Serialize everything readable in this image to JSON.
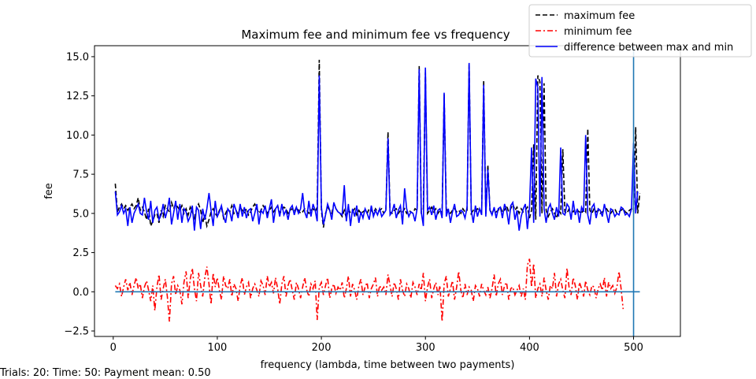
{
  "footer_text": "Trials: 20: Time: 50: Payment mean: 0.50",
  "chart_data": {
    "type": "line",
    "title": "Maximum fee and minimum fee vs frequency",
    "xlabel": "frequency (lambda, time between two payments)",
    "ylabel": "fee",
    "xlim": [
      -18,
      545
    ],
    "ylim": [
      -2.85,
      15.7
    ],
    "xticks": [
      0,
      100,
      200,
      300,
      400,
      500
    ],
    "yticks": [
      -2.5,
      0.0,
      2.5,
      5.0,
      7.5,
      10.0,
      12.5,
      15.0
    ],
    "xtick_labels": [
      "0",
      "100",
      "200",
      "300",
      "400",
      "500"
    ],
    "ytick_labels": [
      "−2.5",
      "0.0",
      "2.5",
      "5.0",
      "7.5",
      "10.0",
      "12.5",
      "15.0"
    ],
    "grid": false,
    "legend_position": "top-right",
    "x_start": 2,
    "x_step": 2,
    "series": [
      {
        "name": "maximum fee",
        "color": "#000000",
        "style": "dashed",
        "values": [
          6.9,
          5.1,
          5.4,
          5.6,
          5.3,
          5.5,
          5.2,
          5.4,
          5.6,
          5.3,
          5.5,
          6.0,
          5.2,
          5.4,
          5.1,
          4.6,
          5.3,
          4.2,
          4.5,
          4.9,
          5.0,
          4.4,
          5.2,
          4.8,
          5.5,
          5.3,
          5.1,
          5.7,
          5.3,
          5.6,
          5.4,
          5.2,
          5.5,
          5.0,
          5.3,
          4.9,
          5.4,
          5.1,
          4.7,
          5.3,
          5.6,
          5.2,
          4.4,
          4.9,
          4.2,
          4.6,
          5.1,
          5.3,
          5.0,
          4.8,
          5.2,
          5.4,
          4.7,
          5.0,
          5.3,
          5.1,
          5.5,
          5.0,
          5.2,
          4.9,
          5.4,
          5.2,
          5.0,
          5.3,
          4.9,
          5.1,
          5.4,
          5.6,
          5.3,
          5.0,
          5.2,
          5.5,
          5.3,
          5.0,
          5.2,
          5.4,
          5.1,
          5.3,
          5.5,
          5.0,
          5.2,
          5.4,
          5.3,
          5.0,
          5.2,
          5.3,
          5.1,
          5.4,
          5.2,
          5.0,
          5.1,
          5.3,
          5.2,
          5.0,
          5.2,
          5.3,
          5.1,
          5.4,
          14.8,
          5.2,
          4.1,
          5.0,
          5.4,
          5.2,
          5.0,
          5.6,
          5.3,
          5.1,
          5.0,
          4.8,
          5.2,
          4.7,
          5.3,
          5.0,
          5.1,
          5.3,
          4.9,
          5.2,
          5.0,
          5.1,
          5.2,
          5.0,
          5.3,
          5.2,
          5.0,
          5.3,
          5.1,
          5.2,
          5.3,
          5.0,
          5.2,
          10.2,
          5.1,
          5.0,
          5.2,
          5.3,
          5.0,
          5.2,
          5.1,
          5.3,
          5.0,
          5.2,
          5.1,
          5.0,
          5.3,
          5.2,
          14.4,
          5.1,
          5.3,
          14.0,
          5.0,
          5.2,
          5.4,
          5.1,
          5.3,
          5.0,
          5.2,
          5.0,
          12.6,
          5.3,
          5.1,
          5.0,
          5.2,
          5.3,
          5.1,
          5.2,
          5.0,
          5.3,
          5.1,
          5.2,
          14.6,
          5.0,
          5.2,
          5.1,
          5.3,
          5.2,
          5.1,
          13.5,
          4.9,
          8.1,
          5.2,
          5.0,
          5.3,
          5.1,
          5.2,
          5.4,
          5.1,
          5.2,
          5.5,
          5.1,
          5.3,
          5.6,
          5.2,
          5.4,
          5.0,
          5.3,
          5.1,
          5.2,
          5.4,
          4.7,
          5.2,
          9.4,
          4.6,
          13.8,
          13.4,
          5.0,
          13.3,
          5.2,
          4.8,
          5.1,
          5.3,
          5.0,
          4.7,
          5.2,
          5.0,
          9.1,
          5.1,
          5.0,
          5.3,
          5.2,
          5.1,
          5.3,
          5.2,
          5.1,
          5.0,
          5.3,
          5.1,
          10.4,
          5.2,
          5.0,
          5.3,
          5.1,
          5.2,
          5.0,
          5.1,
          5.2,
          5.3,
          5.1,
          5.0,
          5.2,
          5.3,
          5.0,
          5.1,
          5.2,
          5.3,
          5.1,
          5.0,
          5.2,
          5.3,
          5.1,
          10.5,
          5.0,
          6.3
        ]
      },
      {
        "name": "minimum fee",
        "color": "#ff0000",
        "style": "dashdot",
        "values": [
          0.4,
          0.2,
          0.5,
          -0.3,
          0.3,
          0.8,
          0.1,
          0.6,
          -0.2,
          0.4,
          0.9,
          0.2,
          0.5,
          -0.4,
          0.3,
          0.7,
          0.1,
          -0.6,
          0.4,
          -1.2,
          0.3,
          1.1,
          -0.5,
          0.2,
          0.8,
          -0.3,
          -1.9,
          0.5,
          1.0,
          -0.2,
          0.4,
          0.1,
          -0.8,
          0.6,
          1.3,
          -0.4,
          0.8,
          1.5,
          0.2,
          -0.6,
          1.2,
          0.4,
          -0.3,
          0.9,
          1.6,
          0.5,
          -0.8,
          1.2,
          0.3,
          0.9,
          0.1,
          -0.5,
          1.0,
          0.4,
          0.2,
          0.8,
          -0.3,
          0.5,
          0.2,
          -0.6,
          0.4,
          0.9,
          -0.2,
          0.3,
          0.6,
          -0.4,
          0.2,
          0.5,
          0.1,
          -0.3,
          0.7,
          0.4,
          -0.2,
          1.0,
          0.3,
          0.6,
          -0.1,
          0.9,
          0.2,
          -0.8,
          0.5,
          1.0,
          -0.3,
          0.4,
          0.8,
          0.1,
          -0.5,
          0.6,
          0.2,
          -0.4,
          0.3,
          0.9,
          0.1,
          -0.3,
          0.5,
          0.2,
          0.7,
          -1.8,
          0.3,
          0.6,
          -0.2,
          0.4,
          0.9,
          -0.4,
          0.2,
          0.5,
          -0.1,
          0.3,
          0.1,
          0.6,
          -0.4,
          0.2,
          1.0,
          -0.3,
          0.5,
          0.1,
          -0.5,
          0.4,
          0.8,
          -0.2,
          0.3,
          0.6,
          -0.4,
          0.2,
          0.5,
          0.9,
          -0.3,
          0.4,
          0.1,
          0.3,
          -0.2,
          1.1,
          0.4,
          -0.3,
          0.6,
          0.2,
          -0.5,
          0.8,
          0.1,
          -0.3,
          0.5,
          0.2,
          -0.4,
          0.6,
          0.3,
          -0.2,
          0.5,
          0.1,
          1.2,
          -0.6,
          0.3,
          0.8,
          -0.4,
          0.2,
          0.6,
          -0.2,
          0.4,
          -1.9,
          0.5,
          1.0,
          -0.3,
          0.2,
          0.7,
          -0.5,
          0.3,
          1.3,
          0.1,
          -0.4,
          0.5,
          -0.2,
          0.3,
          0.1,
          -0.6,
          0.4,
          0.2,
          -0.3,
          0.5,
          0.1,
          -0.2,
          0.3,
          -0.4,
          0.2,
          1.1,
          -0.3,
          0.5,
          0.8,
          -0.2,
          0.4,
          0.6,
          -0.5,
          0.2,
          0.3,
          -0.2,
          0.1,
          0.4,
          -0.3,
          0.2,
          -0.5,
          1.7,
          2.1,
          0.3,
          1.8,
          -0.4,
          0.2,
          0.5,
          -0.3,
          0.9,
          0.1,
          -0.5,
          0.4,
          0.2,
          1.2,
          -0.3,
          0.5,
          0.8,
          0.1,
          -0.4,
          1.5,
          0.3,
          -0.2,
          0.9,
          0.4,
          -0.5,
          0.6,
          0.2,
          -0.3,
          0.7,
          0.1,
          -0.2,
          0.4,
          0.3,
          -0.4,
          0.2,
          0.5,
          0.1,
          0.9,
          -0.3,
          0.6,
          0.2,
          0.4,
          -0.1,
          0.3,
          1.3,
          0.2,
          -1.1
        ]
      },
      {
        "name": "difference between max and min",
        "color": "#0000ff",
        "style": "solid",
        "values": [
          6.4,
          4.9,
          5.1,
          5.5,
          5.0,
          5.3,
          4.2,
          5.4,
          4.4,
          5.0,
          5.3,
          5.6,
          5.0,
          4.9,
          6.0,
          5.1,
          4.6,
          5.8,
          4.4,
          5.2,
          5.4,
          4.6,
          4.9,
          5.6,
          4.7,
          5.2,
          6.0,
          4.3,
          5.0,
          5.8,
          4.6,
          5.6,
          4.4,
          5.3,
          5.1,
          4.5,
          4.8,
          5.5,
          3.9,
          5.4,
          5.2,
          4.0,
          5.3,
          4.6,
          5.3,
          6.3,
          5.2,
          4.2,
          5.8,
          4.8,
          5.1,
          5.5,
          4.8,
          4.4,
          5.3,
          5.1,
          4.5,
          5.6,
          5.2,
          4.7,
          5.6,
          4.8,
          5.4,
          4.7,
          5.2,
          5.3,
          4.5,
          5.0,
          5.6,
          4.3,
          5.2,
          5.0,
          5.5,
          4.7,
          5.3,
          5.9,
          4.4,
          5.3,
          5.5,
          4.8,
          5.6,
          4.9,
          5.2,
          4.6,
          5.3,
          5.5,
          4.9,
          5.4,
          5.0,
          5.3,
          6.3,
          5.1,
          4.7,
          5.8,
          4.8,
          5.6,
          5.2,
          4.5,
          13.8,
          5.4,
          4.3,
          4.9,
          5.6,
          5.2,
          4.6,
          5.7,
          5.3,
          5.1,
          5.0,
          4.9,
          6.8,
          4.5,
          5.6,
          4.2,
          5.3,
          4.8,
          5.5,
          4.4,
          5.1,
          4.7,
          5.3,
          5.0,
          4.6,
          5.5,
          4.8,
          5.2,
          4.9,
          5.3,
          4.8,
          5.0,
          5.2,
          9.8,
          4.9,
          5.1,
          5.6,
          4.7,
          5.2,
          5.5,
          4.3,
          6.6,
          5.3,
          4.8,
          5.1,
          5.0,
          4.5,
          5.3,
          14.2,
          5.1,
          4.2,
          14.3,
          5.2,
          5.4,
          4.9,
          5.5,
          4.6,
          5.2,
          5.3,
          4.7,
          12.7,
          4.8,
          5.3,
          4.4,
          5.1,
          5.6,
          4.8,
          4.9,
          5.2,
          5.1,
          4.7,
          5.4,
          14.6,
          5.2,
          4.4,
          5.5,
          4.8,
          5.3,
          4.9,
          13.2,
          4.8,
          7.8,
          5.2,
          4.9,
          5.4,
          4.7,
          5.3,
          5.4,
          4.7,
          5.6,
          5.2,
          4.3,
          5.5,
          5.7,
          4.6,
          5.2,
          3.9,
          4.8,
          5.3,
          5.6,
          4.0,
          5.4,
          9.2,
          4.4,
          13.6,
          13.0,
          4.8,
          13.7,
          5.3,
          4.4,
          5.3,
          5.6,
          5.0,
          4.6,
          5.4,
          4.8,
          9.2,
          5.0,
          4.9,
          5.6,
          5.4,
          4.6,
          5.8,
          4.9,
          5.3,
          4.4,
          5.4,
          5.1,
          10.0,
          4.9,
          4.3,
          5.4,
          5.6,
          4.7,
          5.3,
          5.2,
          4.8,
          5.6,
          5.0,
          4.4,
          5.3,
          5.2,
          4.8,
          5.0,
          4.9,
          5.4,
          5.3,
          4.9,
          5.0,
          4.8,
          5.3,
          9.5,
          5.0,
          6.4
        ]
      },
      {
        "name": "",
        "color": "#1f77b4",
        "style": "solid",
        "values_constant": 0.0
      }
    ],
    "vline": {
      "x": 500,
      "color": "#1f77b4"
    }
  }
}
